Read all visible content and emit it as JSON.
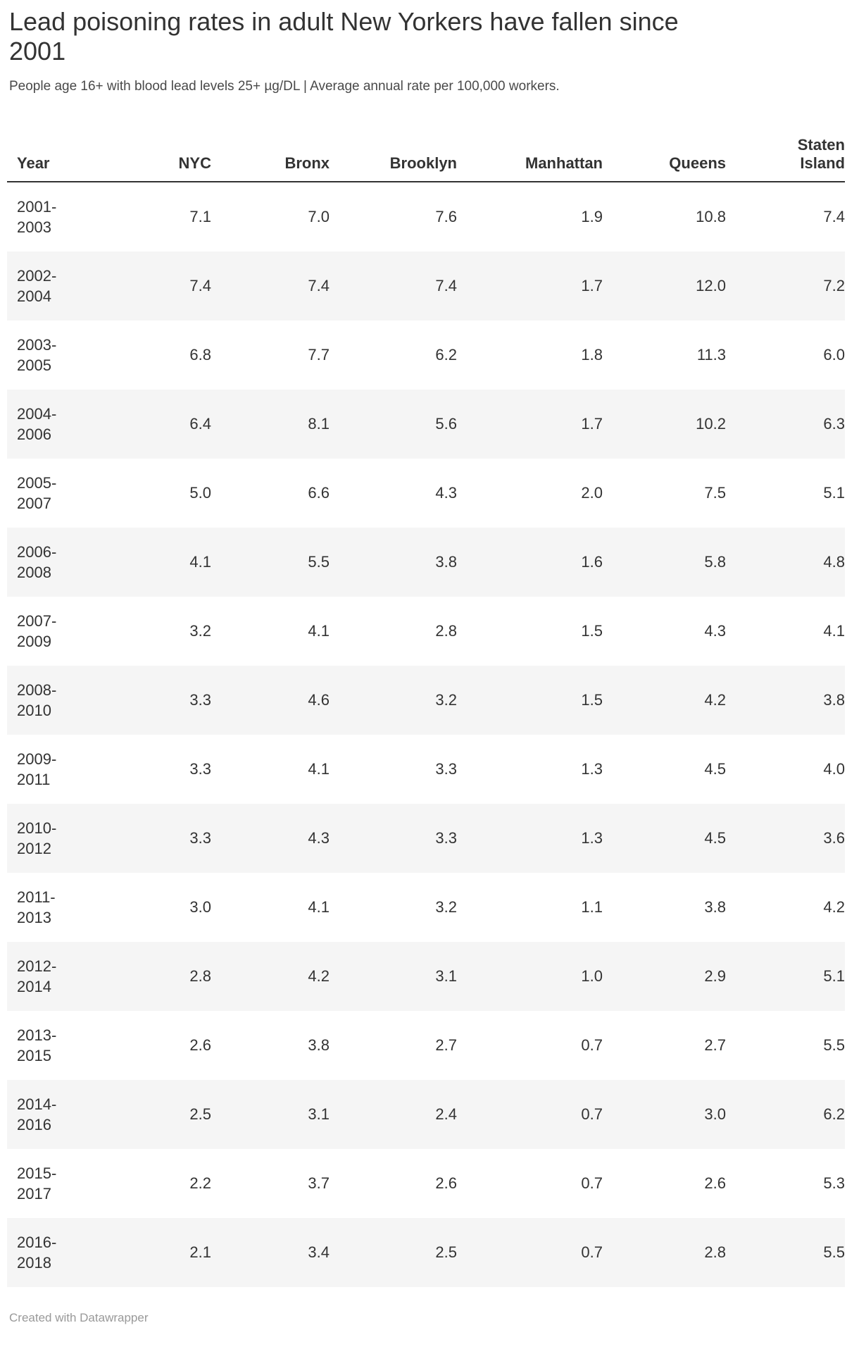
{
  "header": {
    "title": "Lead poisoning rates in adult New Yorkers have fallen since\n2001",
    "subtitle": "People age 16+ with blood lead levels 25+ µg/DL | Average annual rate per 100,000 workers."
  },
  "chart_data": {
    "type": "table",
    "title": "Lead poisoning rates in adult New Yorkers have fallen since 2001",
    "subtitle": "People age 16+ with blood lead levels 25+ µg/DL | Average annual rate per 100,000 workers.",
    "columns": [
      "Year",
      "NYC",
      "Bronx",
      "Brooklyn",
      "Manhattan",
      "Queens",
      "Staten Island"
    ],
    "rows": [
      {
        "year": "2001-2003",
        "values": [
          "7.1",
          "7.0",
          "7.6",
          "1.9",
          "10.8",
          "7.4"
        ]
      },
      {
        "year": "2002-2004",
        "values": [
          "7.4",
          "7.4",
          "7.4",
          "1.7",
          "12.0",
          "7.2"
        ]
      },
      {
        "year": "2003-2005",
        "values": [
          "6.8",
          "7.7",
          "6.2",
          "1.8",
          "11.3",
          "6.0"
        ]
      },
      {
        "year": "2004-2006",
        "values": [
          "6.4",
          "8.1",
          "5.6",
          "1.7",
          "10.2",
          "6.3"
        ]
      },
      {
        "year": "2005-2007",
        "values": [
          "5.0",
          "6.6",
          "4.3",
          "2.0",
          "7.5",
          "5.1"
        ]
      },
      {
        "year": "2006-2008",
        "values": [
          "4.1",
          "5.5",
          "3.8",
          "1.6",
          "5.8",
          "4.8"
        ]
      },
      {
        "year": "2007-2009",
        "values": [
          "3.2",
          "4.1",
          "2.8",
          "1.5",
          "4.3",
          "4.1"
        ]
      },
      {
        "year": "2008-2010",
        "values": [
          "3.3",
          "4.6",
          "3.2",
          "1.5",
          "4.2",
          "3.8"
        ]
      },
      {
        "year": "2009-2011",
        "values": [
          "3.3",
          "4.1",
          "3.3",
          "1.3",
          "4.5",
          "4.0"
        ]
      },
      {
        "year": "2010-2012",
        "values": [
          "3.3",
          "4.3",
          "3.3",
          "1.3",
          "4.5",
          "3.6"
        ]
      },
      {
        "year": "2011-2013",
        "values": [
          "3.0",
          "4.1",
          "3.2",
          "1.1",
          "3.8",
          "4.2"
        ]
      },
      {
        "year": "2012-2014",
        "values": [
          "2.8",
          "4.2",
          "3.1",
          "1.0",
          "2.9",
          "5.1"
        ]
      },
      {
        "year": "2013-2015",
        "values": [
          "2.6",
          "3.8",
          "2.7",
          "0.7",
          "2.7",
          "5.5"
        ]
      },
      {
        "year": "2014-2016",
        "values": [
          "2.5",
          "3.1",
          "2.4",
          "0.7",
          "3.0",
          "6.2"
        ]
      },
      {
        "year": "2015-2017",
        "values": [
          "2.2",
          "3.7",
          "2.6",
          "0.7",
          "2.6",
          "5.3"
        ]
      },
      {
        "year": "2016-2018",
        "values": [
          "2.1",
          "3.4",
          "2.5",
          "0.7",
          "2.8",
          "5.5"
        ]
      }
    ],
    "layout": {
      "zebra_striping": true,
      "header_rule_color": "#333333",
      "stripe_color": "#f5f5f5"
    }
  },
  "footer": {
    "credit": "Created with Datawrapper"
  }
}
